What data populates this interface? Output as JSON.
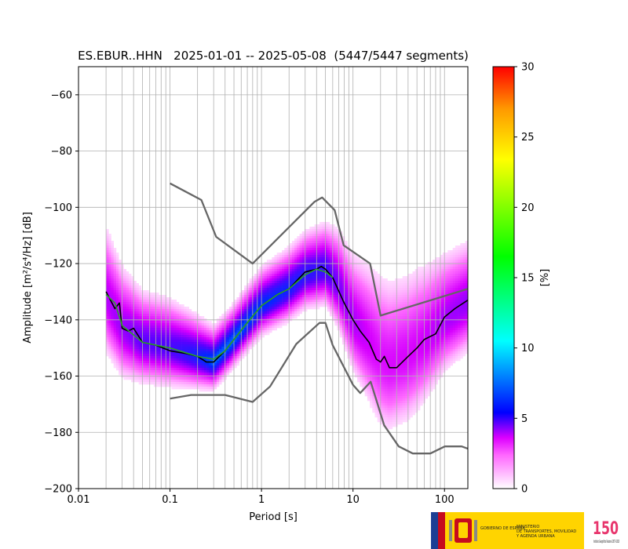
{
  "chart_data": {
    "type": "heatmap",
    "title": "ES.EBUR..HHN   2025-01-01 -- 2025-05-08  (5447/5447 segments)",
    "xlabel": "Period [s]",
    "ylabel": "Amplitude [m²/s⁴/Hz] [dB]",
    "x_scale": "log",
    "xlim": [
      0.01,
      180
    ],
    "ylim": [
      -200,
      -50
    ],
    "x_ticks": [
      0.01,
      0.1,
      1,
      10,
      100
    ],
    "x_tick_labels": [
      "0.01",
      "0.1",
      "1",
      "10",
      "100"
    ],
    "y_ticks": [
      -60,
      -80,
      -100,
      -120,
      -140,
      -160,
      -180,
      -200
    ],
    "y_tick_labels": [
      "−60",
      "−80",
      "−100",
      "−120",
      "−140",
      "−160",
      "−180",
      "−200"
    ],
    "grid": true,
    "colorbar": {
      "label": "[%]",
      "range": [
        0,
        30
      ],
      "ticks": [
        0,
        5,
        10,
        15,
        20,
        25,
        30
      ],
      "tick_labels": [
        "0",
        "5",
        "10",
        "15",
        "20",
        "25",
        "30"
      ],
      "colormap": "pqlx"
    },
    "series": [
      {
        "name": "median",
        "color": "#000000",
        "points": [
          [
            0.02,
            -130
          ],
          [
            0.025,
            -136
          ],
          [
            0.028,
            -134
          ],
          [
            0.03,
            -143
          ],
          [
            0.035,
            -144
          ],
          [
            0.04,
            -143
          ],
          [
            0.05,
            -148
          ],
          [
            0.07,
            -149
          ],
          [
            0.1,
            -151
          ],
          [
            0.15,
            -152
          ],
          [
            0.2,
            -153
          ],
          [
            0.25,
            -155
          ],
          [
            0.3,
            -155
          ],
          [
            0.4,
            -151
          ],
          [
            0.5,
            -147
          ],
          [
            0.7,
            -141
          ],
          [
            1,
            -135
          ],
          [
            1.5,
            -131
          ],
          [
            2,
            -129
          ],
          [
            3,
            -123
          ],
          [
            4,
            -122
          ],
          [
            4.5,
            -121
          ],
          [
            5,
            -122
          ],
          [
            6,
            -125
          ],
          [
            8,
            -134
          ],
          [
            10,
            -140
          ],
          [
            12,
            -144
          ],
          [
            15,
            -148
          ],
          [
            18,
            -154
          ],
          [
            20,
            -155
          ],
          [
            22,
            -153
          ],
          [
            25,
            -157
          ],
          [
            30,
            -157
          ],
          [
            40,
            -153
          ],
          [
            50,
            -150
          ],
          [
            60,
            -147
          ],
          [
            80,
            -145
          ],
          [
            100,
            -139
          ],
          [
            130,
            -136
          ],
          [
            180,
            -133
          ]
        ]
      },
      {
        "name": "mode",
        "color": "#2ca02c",
        "points": [
          [
            0.02,
            -131
          ],
          [
            0.025,
            -134
          ],
          [
            0.03,
            -142
          ],
          [
            0.05,
            -148
          ],
          [
            0.1,
            -150
          ],
          [
            0.2,
            -153
          ],
          [
            0.3,
            -154
          ],
          [
            0.4,
            -151
          ],
          [
            0.5,
            -147
          ],
          [
            0.7,
            -141
          ],
          [
            1,
            -135
          ],
          [
            1.5,
            -131
          ],
          [
            2,
            -129
          ],
          [
            3,
            -124
          ],
          [
            4,
            -122
          ],
          [
            5,
            -123
          ],
          [
            6,
            -125
          ]
        ]
      },
      {
        "name": "high-noise-model",
        "color": "#666666",
        "points": [
          [
            0.1,
            -91.5
          ],
          [
            0.22,
            -97.4
          ],
          [
            0.32,
            -110.5
          ],
          [
            0.8,
            -120
          ],
          [
            3.8,
            -98
          ],
          [
            4.6,
            -96.5
          ],
          [
            6.3,
            -101
          ],
          [
            7.9,
            -113.5
          ],
          [
            15.4,
            -120
          ],
          [
            20,
            -138.5
          ],
          [
            180,
            -129
          ]
        ]
      },
      {
        "name": "low-noise-model",
        "color": "#666666",
        "points": [
          [
            0.1,
            -168
          ],
          [
            0.17,
            -166.7
          ],
          [
            0.4,
            -166.7
          ],
          [
            0.8,
            -169.2
          ],
          [
            1.24,
            -163.7
          ],
          [
            2.4,
            -148.6
          ],
          [
            4.3,
            -141.1
          ],
          [
            5,
            -141.1
          ],
          [
            6,
            -149
          ],
          [
            10,
            -163.1
          ],
          [
            12,
            -166
          ],
          [
            15.6,
            -162
          ],
          [
            21.9,
            -177.5
          ],
          [
            31.6,
            -185
          ],
          [
            45,
            -187.5
          ],
          [
            70,
            -187.5
          ],
          [
            101,
            -185
          ],
          [
            154,
            -185
          ],
          [
            180,
            -185.8
          ]
        ]
      }
    ],
    "density": {
      "note": "probability density of PSD values per period",
      "centerline_points": [
        [
          0.02,
          -132
        ],
        [
          0.03,
          -143
        ],
        [
          0.05,
          -148
        ],
        [
          0.1,
          -150
        ],
        [
          0.2,
          -153
        ],
        [
          0.3,
          -155
        ],
        [
          0.5,
          -147
        ],
        [
          0.7,
          -141
        ],
        [
          1,
          -135
        ],
        [
          2,
          -129
        ],
        [
          3,
          -124
        ],
        [
          5,
          -122
        ],
        [
          7,
          -128
        ],
        [
          10,
          -140
        ],
        [
          15,
          -148
        ],
        [
          20,
          -154
        ],
        [
          25,
          -156
        ],
        [
          40,
          -153
        ],
        [
          60,
          -148
        ],
        [
          100,
          -140
        ],
        [
          180,
          -134
        ]
      ],
      "spread_db": [
        [
          0.02,
          26
        ],
        [
          0.05,
          18
        ],
        [
          0.1,
          17
        ],
        [
          0.2,
          14
        ],
        [
          0.3,
          12
        ],
        [
          0.5,
          12
        ],
        [
          1,
          13
        ],
        [
          2,
          14
        ],
        [
          3,
          15
        ],
        [
          5,
          16
        ],
        [
          10,
          24
        ],
        [
          20,
          32
        ],
        [
          50,
          30
        ],
        [
          100,
          24
        ],
        [
          180,
          22
        ]
      ]
    }
  },
  "logos": {
    "government": "GOBIERNO DE ESPAÑA",
    "ministry_line1": "MINISTERIO",
    "ministry_line2": "DE TRANSPORTES, MOVILIDAD",
    "ministry_line3": "Y AGENDA URBANA",
    "anniversary_mark": "150",
    "ign_text": "Instituto Geográfico Nacional 1870-2020"
  }
}
